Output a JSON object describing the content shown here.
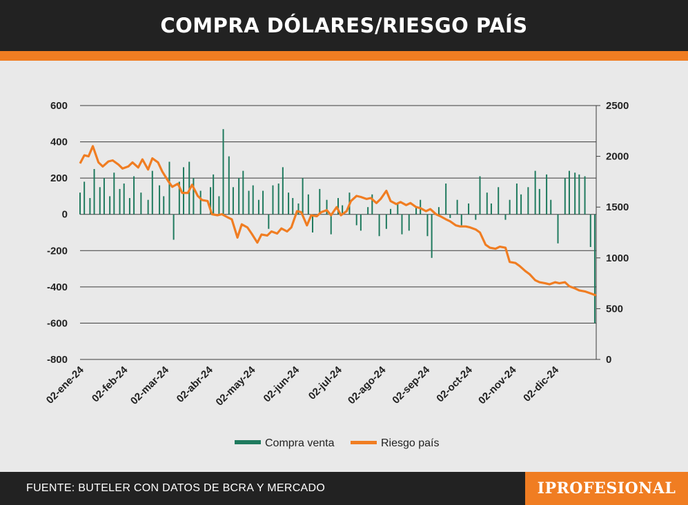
{
  "header": {
    "title": "COMPRA DÓLARES/RIESGO PAÍS"
  },
  "footer": {
    "source": "FUENTE: BUTELER CON DATOS DE BCRA Y MERCADO",
    "brand": "IPROFESIONAL"
  },
  "colors": {
    "accent": "#f07d22",
    "bar": "#1f7a5e",
    "dark": "#222222",
    "background": "#e9e9e9"
  },
  "chart_data": {
    "type": "bar",
    "title": "COMPRA DÓLARES/RIESGO PAÍS",
    "x_type": "date",
    "x_range": [
      "2024-01-02",
      "2024-12-31"
    ],
    "x_ticks": [
      {
        "date": "2024-01-02",
        "label": "02-ene-24"
      },
      {
        "date": "2024-02-02",
        "label": "02-feb-24"
      },
      {
        "date": "2024-03-02",
        "label": "02-mar-24"
      },
      {
        "date": "2024-04-02",
        "label": "02-abr-24"
      },
      {
        "date": "2024-05-02",
        "label": "02-may-24"
      },
      {
        "date": "2024-06-02",
        "label": "02-jun-24"
      },
      {
        "date": "2024-07-02",
        "label": "02-jul-24"
      },
      {
        "date": "2024-08-02",
        "label": "02-ago-24"
      },
      {
        "date": "2024-09-02",
        "label": "02-sep-24"
      },
      {
        "date": "2024-10-02",
        "label": "02-oct-24"
      },
      {
        "date": "2024-11-02",
        "label": "02-nov-24"
      },
      {
        "date": "2024-12-02",
        "label": "02-dic-24"
      }
    ],
    "y_left": {
      "min": -800,
      "max": 600,
      "ticks": [
        600,
        400,
        200,
        0,
        -200,
        -400,
        -600,
        -800
      ]
    },
    "y_right": {
      "min": 0,
      "max": 2500,
      "ticks": [
        2500,
        2000,
        1500,
        1000,
        500,
        0
      ]
    },
    "grid": true,
    "legend": {
      "position": "bottom",
      "entries": [
        "Compra venta",
        "Riesgo país"
      ]
    },
    "series": [
      {
        "name": "Compra venta",
        "type": "bar",
        "axis": "left",
        "x": [
          "2024-01-02",
          "2024-01-05",
          "2024-01-09",
          "2024-01-12",
          "2024-01-16",
          "2024-01-19",
          "2024-01-23",
          "2024-01-26",
          "2024-01-30",
          "2024-02-02",
          "2024-02-06",
          "2024-02-09",
          "2024-02-14",
          "2024-02-19",
          "2024-02-22",
          "2024-02-27",
          "2024-03-01",
          "2024-03-05",
          "2024-03-08",
          "2024-03-12",
          "2024-03-15",
          "2024-03-19",
          "2024-03-22",
          "2024-03-27",
          "2024-04-03",
          "2024-04-05",
          "2024-04-09",
          "2024-04-12",
          "2024-04-16",
          "2024-04-19",
          "2024-04-23",
          "2024-04-26",
          "2024-04-30",
          "2024-05-03",
          "2024-05-07",
          "2024-05-10",
          "2024-05-14",
          "2024-05-17",
          "2024-05-21",
          "2024-05-24",
          "2024-05-28",
          "2024-05-31",
          "2024-06-04",
          "2024-06-07",
          "2024-06-11",
          "2024-06-14",
          "2024-06-19",
          "2024-06-24",
          "2024-06-27",
          "2024-07-02",
          "2024-07-05",
          "2024-07-10",
          "2024-07-15",
          "2024-07-18",
          "2024-07-23",
          "2024-07-26",
          "2024-07-31",
          "2024-08-05",
          "2024-08-08",
          "2024-08-13",
          "2024-08-16",
          "2024-08-21",
          "2024-08-26",
          "2024-08-29",
          "2024-09-03",
          "2024-09-06",
          "2024-09-11",
          "2024-09-16",
          "2024-09-19",
          "2024-09-24",
          "2024-09-27",
          "2024-10-02",
          "2024-10-07",
          "2024-10-10",
          "2024-10-15",
          "2024-10-18",
          "2024-10-23",
          "2024-10-28",
          "2024-10-31",
          "2024-11-05",
          "2024-11-08",
          "2024-11-13",
          "2024-11-18",
          "2024-11-21",
          "2024-11-26",
          "2024-11-29",
          "2024-12-04",
          "2024-12-09",
          "2024-12-12",
          "2024-12-16",
          "2024-12-19",
          "2024-12-23",
          "2024-12-27",
          "2024-12-30"
        ],
        "values": [
          120,
          180,
          90,
          250,
          150,
          200,
          100,
          230,
          140,
          170,
          90,
          210,
          120,
          80,
          240,
          160,
          100,
          290,
          -140,
          180,
          260,
          290,
          200,
          130,
          150,
          220,
          100,
          470,
          320,
          150,
          200,
          240,
          130,
          160,
          80,
          130,
          -80,
          160,
          170,
          260,
          120,
          90,
          60,
          200,
          110,
          -100,
          140,
          80,
          -110,
          90,
          50,
          120,
          -60,
          -90,
          40,
          110,
          -120,
          -80,
          30,
          60,
          -110,
          -90,
          40,
          80,
          -120,
          -240,
          40,
          170,
          -20,
          80,
          -60,
          60,
          -30,
          210,
          120,
          60,
          150,
          -30,
          80,
          170,
          110,
          150,
          240,
          140,
          220,
          80,
          -160,
          200,
          240,
          230,
          220,
          210,
          -180,
          -600
        ]
      },
      {
        "name": "Riesgo país",
        "type": "line",
        "axis": "right",
        "x": [
          "2024-01-02",
          "2024-01-05",
          "2024-01-08",
          "2024-01-11",
          "2024-01-15",
          "2024-01-18",
          "2024-01-22",
          "2024-01-25",
          "2024-01-29",
          "2024-02-01",
          "2024-02-05",
          "2024-02-08",
          "2024-02-12",
          "2024-02-15",
          "2024-02-19",
          "2024-02-22",
          "2024-02-26",
          "2024-02-29",
          "2024-03-04",
          "2024-03-07",
          "2024-03-11",
          "2024-03-14",
          "2024-03-18",
          "2024-03-21",
          "2024-03-25",
          "2024-03-28",
          "2024-04-01",
          "2024-04-04",
          "2024-04-08",
          "2024-04-11",
          "2024-04-15",
          "2024-04-18",
          "2024-04-22",
          "2024-04-25",
          "2024-04-29",
          "2024-05-02",
          "2024-05-06",
          "2024-05-09",
          "2024-05-13",
          "2024-05-16",
          "2024-05-20",
          "2024-05-23",
          "2024-05-27",
          "2024-05-30",
          "2024-06-03",
          "2024-06-06",
          "2024-06-10",
          "2024-06-13",
          "2024-06-17",
          "2024-06-20",
          "2024-06-24",
          "2024-06-27",
          "2024-07-01",
          "2024-07-04",
          "2024-07-08",
          "2024-07-11",
          "2024-07-15",
          "2024-07-18",
          "2024-07-22",
          "2024-07-25",
          "2024-07-29",
          "2024-08-01",
          "2024-08-05",
          "2024-08-08",
          "2024-08-12",
          "2024-08-15",
          "2024-08-19",
          "2024-08-22",
          "2024-08-26",
          "2024-08-29",
          "2024-09-02",
          "2024-09-05",
          "2024-09-09",
          "2024-09-12",
          "2024-09-16",
          "2024-09-19",
          "2024-09-23",
          "2024-09-26",
          "2024-09-30",
          "2024-10-03",
          "2024-10-07",
          "2024-10-10",
          "2024-10-14",
          "2024-10-17",
          "2024-10-21",
          "2024-10-24",
          "2024-10-28",
          "2024-10-31",
          "2024-11-04",
          "2024-11-07",
          "2024-11-11",
          "2024-11-14",
          "2024-11-18",
          "2024-11-21",
          "2024-11-25",
          "2024-11-28",
          "2024-12-02",
          "2024-12-05",
          "2024-12-09",
          "2024-12-12",
          "2024-12-16",
          "2024-12-19",
          "2024-12-23",
          "2024-12-27",
          "2024-12-31"
        ],
        "values": [
          1930,
          2010,
          2000,
          2100,
          1940,
          1900,
          1950,
          1960,
          1920,
          1880,
          1900,
          1940,
          1890,
          1970,
          1870,
          1980,
          1940,
          1850,
          1760,
          1700,
          1730,
          1640,
          1640,
          1720,
          1610,
          1570,
          1560,
          1430,
          1420,
          1430,
          1400,
          1380,
          1200,
          1330,
          1300,
          1240,
          1150,
          1230,
          1220,
          1260,
          1240,
          1290,
          1260,
          1300,
          1460,
          1450,
          1320,
          1420,
          1410,
          1450,
          1470,
          1420,
          1500,
          1420,
          1460,
          1560,
          1610,
          1600,
          1580,
          1590,
          1540,
          1580,
          1660,
          1560,
          1530,
          1550,
          1520,
          1540,
          1500,
          1490,
          1460,
          1480,
          1430,
          1410,
          1380,
          1360,
          1320,
          1310,
          1310,
          1300,
          1280,
          1250,
          1130,
          1100,
          1090,
          1110,
          1100,
          960,
          950,
          920,
          870,
          840,
          780,
          760,
          750,
          740,
          760,
          750,
          760,
          720,
          700,
          680,
          670,
          650,
          630
        ]
      }
    ]
  }
}
